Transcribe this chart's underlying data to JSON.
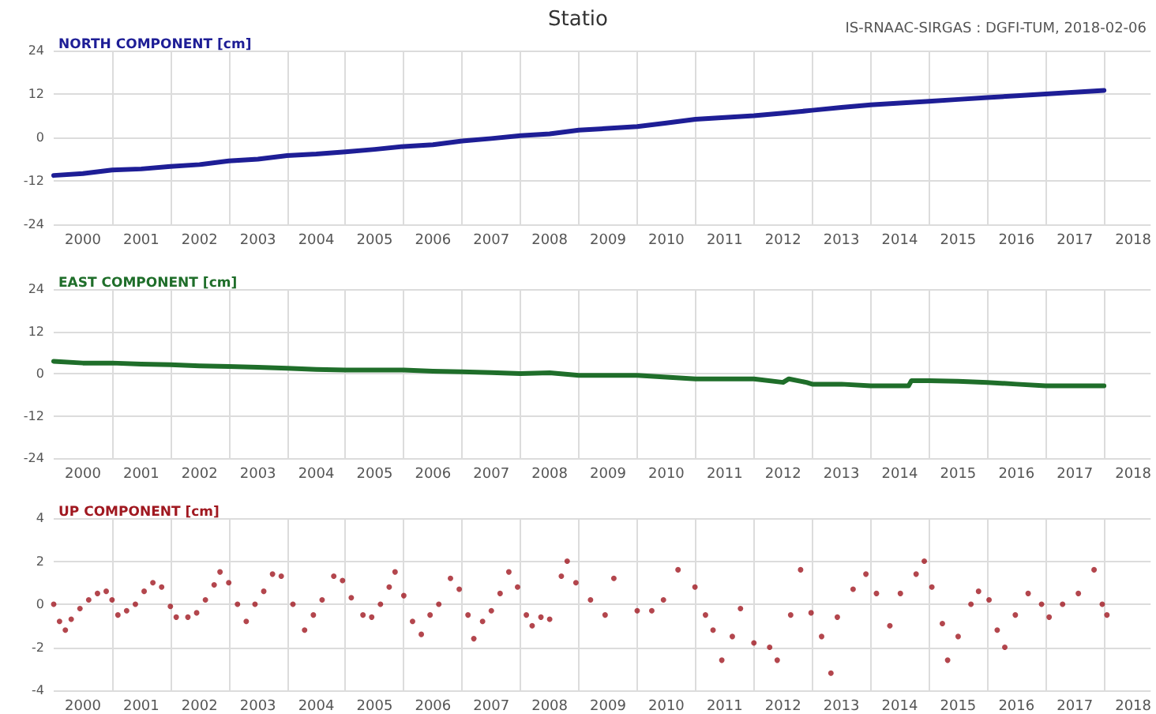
{
  "chart_data": [
    {
      "type": "line",
      "title": "NORTH COMPONENT [cm]",
      "annotations": [
        "Statio",
        "IS-RNAAC-SIRGAS : DGFI-TUM, 2018-02-06"
      ],
      "grid": true,
      "marker": "none",
      "line_style": "solid",
      "xlim": [
        2000,
        2018.8
      ],
      "ylim": [
        -24,
        24
      ],
      "yticks": [
        -24,
        -12,
        0,
        12,
        24
      ],
      "xticks": [
        {
          "value": 2001,
          "label": null
        },
        {
          "value": 2002,
          "label": null
        },
        {
          "value": 2003,
          "label": null
        },
        {
          "value": 2004,
          "label": null
        },
        {
          "value": 2005,
          "label": null
        },
        {
          "value": 2006,
          "label": null
        },
        {
          "value": 2007,
          "label": null
        },
        {
          "value": 2008,
          "label": null
        },
        {
          "value": 2009,
          "label": null
        },
        {
          "value": 2010,
          "label": null
        },
        {
          "value": 2011,
          "label": null
        },
        {
          "value": 2012,
          "label": null
        },
        {
          "value": 2013,
          "label": null
        },
        {
          "value": 2014,
          "label": null
        },
        {
          "value": 2015,
          "label": null
        },
        {
          "value": 2016,
          "label": null
        },
        {
          "value": 2017,
          "label": null
        },
        {
          "value": 2018,
          "label": null
        },
        {
          "value": 2000.5,
          "label": "2000"
        },
        {
          "value": 2001.5,
          "label": "2001"
        },
        {
          "value": 2002.5,
          "label": "2002"
        },
        {
          "value": 2003.5,
          "label": "2003"
        },
        {
          "value": 2004.5,
          "label": "2004"
        },
        {
          "value": 2005.5,
          "label": "2005"
        },
        {
          "value": 2006.5,
          "label": "2006"
        },
        {
          "value": 2007.5,
          "label": "2007"
        },
        {
          "value": 2008.5,
          "label": "2008"
        },
        {
          "value": 2009.5,
          "label": "2009"
        },
        {
          "value": 2010.5,
          "label": "2010"
        },
        {
          "value": 2011.5,
          "label": "2011"
        },
        {
          "value": 2012.5,
          "label": "2012"
        },
        {
          "value": 2013.5,
          "label": "2013"
        },
        {
          "value": 2014.5,
          "label": "2014"
        },
        {
          "value": 2015.5,
          "label": "2015"
        },
        {
          "value": 2016.5,
          "label": "2016"
        },
        {
          "value": 2017.5,
          "label": "2017"
        },
        {
          "value": 2018.5,
          "label": "2018"
        }
      ],
      "series": [
        {
          "color": "#1e1e96",
          "x": [
            2000,
            2000.5,
            2001,
            2001.5,
            2002,
            2002.5,
            2003,
            2003.5,
            2004,
            2004.5,
            2005,
            2005.5,
            2006,
            2006.5,
            2007,
            2007.5,
            2008,
            2008.5,
            2009,
            2009.5,
            2010,
            2010.5,
            2011,
            2011.5,
            2012,
            2012.5,
            2013,
            2013.5,
            2014,
            2014.5,
            2015,
            2015.5,
            2016,
            2016.5,
            2017,
            2017.5,
            2018
          ],
          "values": [
            -10.5,
            -10,
            -9,
            -8.7,
            -8,
            -7.5,
            -6.5,
            -6,
            -5,
            -4.6,
            -4,
            -3.3,
            -2.5,
            -2,
            -1,
            -0.3,
            0.5,
            1,
            2,
            2.5,
            3,
            4,
            5,
            5.5,
            6,
            6.7,
            7.5,
            8.3,
            9,
            9.5,
            10,
            10.5,
            11,
            11.5,
            12,
            12.5,
            13
          ]
        }
      ]
    },
    {
      "type": "line",
      "title": "EAST COMPONENT [cm]",
      "grid": true,
      "marker": "none",
      "line_style": "solid",
      "xlim": [
        2000,
        2018.8
      ],
      "ylim": [
        -24,
        24
      ],
      "yticks": [
        -24,
        -12,
        0,
        12,
        24
      ],
      "xticks": [
        {
          "value": 2001,
          "label": null
        },
        {
          "value": 2002,
          "label": null
        },
        {
          "value": 2003,
          "label": null
        },
        {
          "value": 2004,
          "label": null
        },
        {
          "value": 2005,
          "label": null
        },
        {
          "value": 2006,
          "label": null
        },
        {
          "value": 2007,
          "label": null
        },
        {
          "value": 2008,
          "label": null
        },
        {
          "value": 2009,
          "label": null
        },
        {
          "value": 2010,
          "label": null
        },
        {
          "value": 2011,
          "label": null
        },
        {
          "value": 2012,
          "label": null
        },
        {
          "value": 2013,
          "label": null
        },
        {
          "value": 2014,
          "label": null
        },
        {
          "value": 2015,
          "label": null
        },
        {
          "value": 2016,
          "label": null
        },
        {
          "value": 2017,
          "label": null
        },
        {
          "value": 2018,
          "label": null
        },
        {
          "value": 2000.5,
          "label": "2000"
        },
        {
          "value": 2001.5,
          "label": "2001"
        },
        {
          "value": 2002.5,
          "label": "2002"
        },
        {
          "value": 2003.5,
          "label": "2003"
        },
        {
          "value": 2004.5,
          "label": "2004"
        },
        {
          "value": 2005.5,
          "label": "2005"
        },
        {
          "value": 2006.5,
          "label": "2006"
        },
        {
          "value": 2007.5,
          "label": "2007"
        },
        {
          "value": 2008.5,
          "label": "2008"
        },
        {
          "value": 2009.5,
          "label": "2009"
        },
        {
          "value": 2010.5,
          "label": "2010"
        },
        {
          "value": 2011.5,
          "label": "2011"
        },
        {
          "value": 2012.5,
          "label": "2012"
        },
        {
          "value": 2013.5,
          "label": "2013"
        },
        {
          "value": 2014.5,
          "label": "2014"
        },
        {
          "value": 2015.5,
          "label": "2015"
        },
        {
          "value": 2016.5,
          "label": "2016"
        },
        {
          "value": 2017.5,
          "label": "2017"
        },
        {
          "value": 2018.5,
          "label": "2018"
        }
      ],
      "series": [
        {
          "color": "#1f6e2a",
          "x": [
            2000,
            2000.5,
            2001,
            2001.5,
            2002,
            2002.5,
            2003,
            2003.5,
            2004,
            2004.5,
            2005,
            2005.5,
            2006,
            2006.5,
            2007,
            2007.5,
            2008,
            2008.5,
            2009,
            2009.5,
            2010,
            2010.5,
            2011,
            2011.5,
            2012,
            2012.5,
            2012.6,
            2012.9,
            2013,
            2013.5,
            2014,
            2014.65,
            2014.7,
            2015,
            2015.5,
            2016,
            2016.5,
            2017,
            2017.5,
            2018
          ],
          "values": [
            3.5,
            3,
            3,
            2.7,
            2.5,
            2.2,
            2,
            1.8,
            1.5,
            1.2,
            1,
            1,
            1,
            0.7,
            0.5,
            0.3,
            0,
            0.2,
            -0.5,
            -0.5,
            -0.5,
            -1,
            -1.5,
            -1.5,
            -1.5,
            -2.5,
            -1.5,
            -2.5,
            -3,
            -3,
            -3.5,
            -3.5,
            -2,
            -2,
            -2.2,
            -2.5,
            -3,
            -3.5,
            -3.5,
            -3.5
          ]
        }
      ]
    },
    {
      "type": "scatter",
      "title": "UP COMPONENT [cm]",
      "grid": true,
      "marker": "circle",
      "xlim": [
        2000,
        2018.8
      ],
      "ylim": [
        -4,
        4
      ],
      "yticks": [
        -4,
        -2,
        0,
        2,
        4
      ],
      "xticks": [
        {
          "value": 2001,
          "label": null
        },
        {
          "value": 2002,
          "label": null
        },
        {
          "value": 2003,
          "label": null
        },
        {
          "value": 2004,
          "label": null
        },
        {
          "value": 2005,
          "label": null
        },
        {
          "value": 2006,
          "label": null
        },
        {
          "value": 2007,
          "label": null
        },
        {
          "value": 2008,
          "label": null
        },
        {
          "value": 2009,
          "label": null
        },
        {
          "value": 2010,
          "label": null
        },
        {
          "value": 2011,
          "label": null
        },
        {
          "value": 2012,
          "label": null
        },
        {
          "value": 2013,
          "label": null
        },
        {
          "value": 2014,
          "label": null
        },
        {
          "value": 2015,
          "label": null
        },
        {
          "value": 2016,
          "label": null
        },
        {
          "value": 2017,
          "label": null
        },
        {
          "value": 2018,
          "label": null
        },
        {
          "value": 2000.5,
          "label": "2000"
        },
        {
          "value": 2001.5,
          "label": "2001"
        },
        {
          "value": 2002.5,
          "label": "2002"
        },
        {
          "value": 2003.5,
          "label": "2003"
        },
        {
          "value": 2004.5,
          "label": "2004"
        },
        {
          "value": 2005.5,
          "label": "2005"
        },
        {
          "value": 2006.5,
          "label": "2006"
        },
        {
          "value": 2007.5,
          "label": "2007"
        },
        {
          "value": 2008.5,
          "label": "2008"
        },
        {
          "value": 2009.5,
          "label": "2009"
        },
        {
          "value": 2010.5,
          "label": "2010"
        },
        {
          "value": 2011.5,
          "label": "2011"
        },
        {
          "value": 2012.5,
          "label": "2012"
        },
        {
          "value": 2013.5,
          "label": "2013"
        },
        {
          "value": 2014.5,
          "label": "2014"
        },
        {
          "value": 2015.5,
          "label": "2015"
        },
        {
          "value": 2016.5,
          "label": "2016"
        },
        {
          "value": 2017.5,
          "label": "2017"
        },
        {
          "value": 2018.5,
          "label": "2018"
        }
      ],
      "series": [
        {
          "color": "#a01820",
          "x": [
            2000,
            2000.1,
            2000.2,
            2000.3,
            2000.45,
            2000.6,
            2000.75,
            2000.9,
            2001,
            2001.1,
            2001.25,
            2001.4,
            2001.55,
            2001.7,
            2001.85,
            2002,
            2002.1,
            2002.3,
            2002.45,
            2002.6,
            2002.75,
            2002.85,
            2003,
            2003.15,
            2003.3,
            2003.45,
            2003.6,
            2003.75,
            2003.9,
            2004.1,
            2004.3,
            2004.45,
            2004.6,
            2004.8,
            2004.95,
            2005.1,
            2005.3,
            2005.45,
            2005.6,
            2005.75,
            2005.85,
            2006,
            2006.15,
            2006.3,
            2006.45,
            2006.6,
            2006.8,
            2006.95,
            2007.1,
            2007.2,
            2007.35,
            2007.5,
            2007.65,
            2007.8,
            2007.95,
            2008.1,
            2008.2,
            2008.35,
            2008.5,
            2008.7,
            2008.8,
            2008.95,
            2009.2,
            2009.45,
            2009.6,
            2010,
            2010.25,
            2010.45,
            2010.7,
            2010.99,
            2011.17,
            2011.3,
            2011.45,
            2011.63,
            2011.77,
            2012,
            2012.27,
            2012.4,
            2012.63,
            2012.8,
            2012.98,
            2013.16,
            2013.32,
            2013.43,
            2013.7,
            2013.92,
            2014.1,
            2014.33,
            2014.51,
            2014.78,
            2014.92,
            2015.05,
            2015.23,
            2015.32,
            2015.5,
            2015.72,
            2015.85,
            2016.03,
            2016.17,
            2016.3,
            2016.48,
            2016.7,
            2016.93,
            2017.06,
            2017.29,
            2017.56,
            2017.83,
            2017.97,
            2018.05
          ],
          "values": [
            0,
            -0.8,
            -1.2,
            -0.7,
            -0.2,
            0.2,
            0.5,
            0.6,
            0.2,
            -0.5,
            -0.3,
            0,
            0.6,
            1,
            0.8,
            -0.1,
            -0.6,
            -0.6,
            -0.4,
            0.2,
            0.9,
            1.5,
            1,
            0,
            -0.8,
            0,
            0.6,
            1.4,
            1.3,
            0,
            -1.2,
            -0.5,
            0.2,
            1.3,
            1.1,
            0.3,
            -0.5,
            -0.6,
            0,
            0.8,
            1.5,
            0.4,
            -0.8,
            -1.4,
            -0.5,
            0,
            1.2,
            0.7,
            -0.5,
            -1.6,
            -0.8,
            -0.3,
            0.5,
            1.5,
            0.8,
            -0.5,
            -1,
            -0.6,
            -0.7,
            1.3,
            2,
            1,
            0.2,
            -0.5,
            1.2,
            -0.3,
            -0.3,
            0.2,
            1.6,
            0.8,
            -0.5,
            -1.2,
            -2.6,
            -1.5,
            -0.2,
            -1.8,
            -2,
            -2.6,
            -0.5,
            1.6,
            -0.4,
            -1.5,
            -3.2,
            -0.6,
            0.7,
            1.4,
            0.5,
            -1,
            0.5,
            1.4,
            2,
            0.8,
            -0.9,
            -2.6,
            -1.5,
            0,
            0.6,
            0.2,
            -1.2,
            -2,
            -0.5,
            0.5,
            0,
            -0.6,
            0,
            0.5,
            1.6,
            0,
            -0.5
          ]
        }
      ]
    }
  ]
}
